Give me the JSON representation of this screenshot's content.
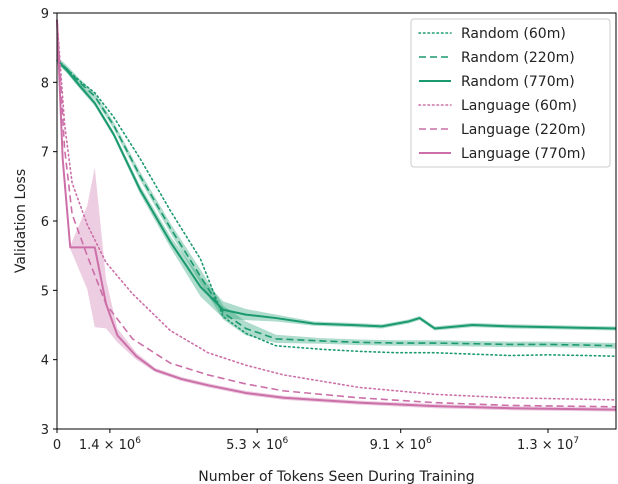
{
  "chart_data": {
    "type": "line",
    "xlabel": "Number of Tokens Seen During Training",
    "ylabel": "Validation Loss",
    "xlim": [
      0,
      14800000
    ],
    "ylim": [
      3,
      9
    ],
    "x_ticks": [
      {
        "value": 0,
        "label": "0"
      },
      {
        "value": 1400000,
        "label": "1.4 × 10^6"
      },
      {
        "value": 5300000,
        "label": "5.3 × 10^6"
      },
      {
        "value": 9100000,
        "label": "9.1 × 10^6"
      },
      {
        "value": 13000000,
        "label": "1.3 × 10^7"
      }
    ],
    "y_ticks": [
      3,
      4,
      5,
      6,
      7,
      8,
      9
    ],
    "grid": false,
    "legend_position": "top-right",
    "colors": {
      "random": "#1a9a6e",
      "language": "#cc6fa8"
    },
    "series": [
      {
        "name": "Random (60m)",
        "group": "random",
        "style": "dotted",
        "x": [
          0,
          250000,
          600000,
          1000000,
          1500000,
          2200000,
          3000000,
          3800000,
          4400000,
          5000000,
          5800000,
          7000000,
          8000000,
          9000000,
          10000000,
          11000000,
          12000000,
          13000000,
          14000000,
          14800000
        ],
        "y": [
          8.32,
          8.2,
          8.02,
          7.85,
          7.5,
          6.9,
          6.15,
          5.45,
          4.62,
          4.38,
          4.2,
          4.15,
          4.12,
          4.1,
          4.1,
          4.08,
          4.06,
          4.07,
          4.06,
          4.05
        ]
      },
      {
        "name": "Random (220m)",
        "group": "random",
        "style": "dashed",
        "x": [
          0,
          250000,
          600000,
          1000000,
          1500000,
          2200000,
          3000000,
          3800000,
          4400000,
          5000000,
          5800000,
          7000000,
          8000000,
          9000000,
          10000000,
          11000000,
          12000000,
          13000000,
          14000000,
          14800000
        ],
        "y": [
          8.32,
          8.2,
          8.0,
          7.8,
          7.38,
          6.65,
          5.9,
          5.2,
          4.68,
          4.45,
          4.3,
          4.27,
          4.25,
          4.24,
          4.24,
          4.23,
          4.22,
          4.22,
          4.21,
          4.2
        ],
        "band": [
          0.05,
          0.05,
          0.05,
          0.05,
          0.05,
          0.06,
          0.07,
          0.1,
          0.1,
          0.1,
          0.06,
          0.04,
          0.04,
          0.04,
          0.04,
          0.04,
          0.04,
          0.04,
          0.04,
          0.04
        ]
      },
      {
        "name": "Random (770m)",
        "group": "random",
        "style": "solid",
        "x": [
          0,
          250000,
          600000,
          1000000,
          1500000,
          2200000,
          3000000,
          3800000,
          4400000,
          5000000,
          5800000,
          6800000,
          7800000,
          8600000,
          9300000,
          9600000,
          10000000,
          11000000,
          12000000,
          13000000,
          13800000,
          14800000
        ],
        "y": [
          8.32,
          8.18,
          7.95,
          7.7,
          7.25,
          6.45,
          5.7,
          5.05,
          4.72,
          4.65,
          4.6,
          4.52,
          4.5,
          4.48,
          4.55,
          4.6,
          4.45,
          4.5,
          4.48,
          4.47,
          4.46,
          4.45
        ],
        "band": [
          0.04,
          0.04,
          0.04,
          0.04,
          0.04,
          0.06,
          0.08,
          0.14,
          0.12,
          0.08,
          0.05,
          0.03,
          0.03,
          0.03,
          0.03,
          0.03,
          0.03,
          0.03,
          0.03,
          0.03,
          0.03,
          0.03
        ]
      },
      {
        "name": "Language (60m)",
        "group": "language",
        "style": "dotted",
        "x": [
          0,
          200000,
          400000,
          800000,
          1300000,
          2000000,
          3000000,
          4000000,
          5000000,
          6000000,
          8000000,
          10000000,
          12000000,
          14800000
        ],
        "y": [
          8.9,
          7.4,
          6.55,
          5.95,
          5.4,
          4.95,
          4.42,
          4.1,
          3.92,
          3.78,
          3.6,
          3.5,
          3.45,
          3.42
        ]
      },
      {
        "name": "Language (220m)",
        "group": "language",
        "style": "dashed",
        "x": [
          0,
          200000,
          400000,
          800000,
          1300000,
          2000000,
          3000000,
          4000000,
          5000000,
          6000000,
          8000000,
          10000000,
          12000000,
          14800000
        ],
        "y": [
          8.9,
          7.05,
          6.1,
          5.5,
          4.8,
          4.3,
          3.95,
          3.78,
          3.65,
          3.55,
          3.45,
          3.38,
          3.34,
          3.32
        ]
      },
      {
        "name": "Language (770m)",
        "group": "language",
        "style": "solid",
        "x": [
          0,
          150000,
          350000,
          800000,
          1000000,
          1300000,
          1600000,
          2100000,
          2600000,
          3300000,
          4000000,
          5000000,
          6000000,
          8000000,
          10000000,
          12000000,
          14800000
        ],
        "y": [
          8.9,
          6.9,
          5.62,
          5.62,
          5.62,
          4.8,
          4.35,
          4.05,
          3.85,
          3.72,
          3.63,
          3.52,
          3.45,
          3.38,
          3.33,
          3.3,
          3.28
        ],
        "band": [
          0.02,
          0.02,
          0.02,
          0.6,
          1.15,
          0.35,
          0.1,
          0.05,
          0.03,
          0.03,
          0.03,
          0.03,
          0.03,
          0.03,
          0.03,
          0.03,
          0.03
        ]
      }
    ]
  }
}
